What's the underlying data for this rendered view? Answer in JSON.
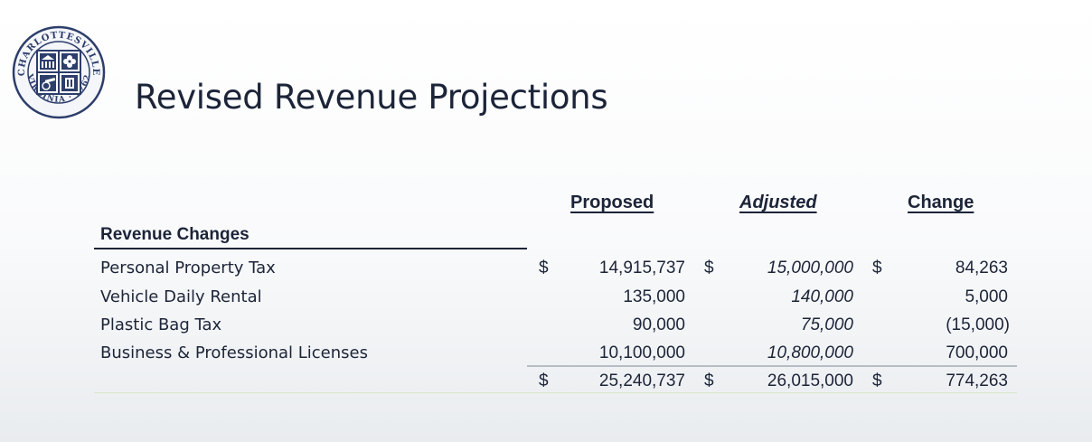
{
  "seal": {
    "top_text": "CHARLOTTESVILLE",
    "bottom_text": "VIRGINIA · 1762"
  },
  "title": "Revised Revenue Projections",
  "table": {
    "headers": {
      "proposed": "Proposed",
      "adjusted": "Adjusted",
      "change": "Change"
    },
    "section_label": "Revenue Changes",
    "currency_symbol": "$",
    "rows": [
      {
        "label": "Personal Property Tax",
        "proposed": "14,915,737",
        "adjusted": "15,000,000",
        "change": "84,263"
      },
      {
        "label": "Vehicle Daily Rental",
        "proposed": "135,000",
        "adjusted": "140,000",
        "change": "5,000"
      },
      {
        "label": "Plastic Bag Tax",
        "proposed": "90,000",
        "adjusted": "75,000",
        "change": "(15,000)"
      },
      {
        "label": "Business & Professional Licenses",
        "proposed": "10,100,000",
        "adjusted": "10,800,000",
        "change": "700,000"
      }
    ],
    "total": {
      "proposed": "25,240,737",
      "adjusted": "26,015,000",
      "change": "774,263"
    }
  },
  "colors": {
    "text": "#1c2438",
    "seal": "#2d3e6b"
  }
}
